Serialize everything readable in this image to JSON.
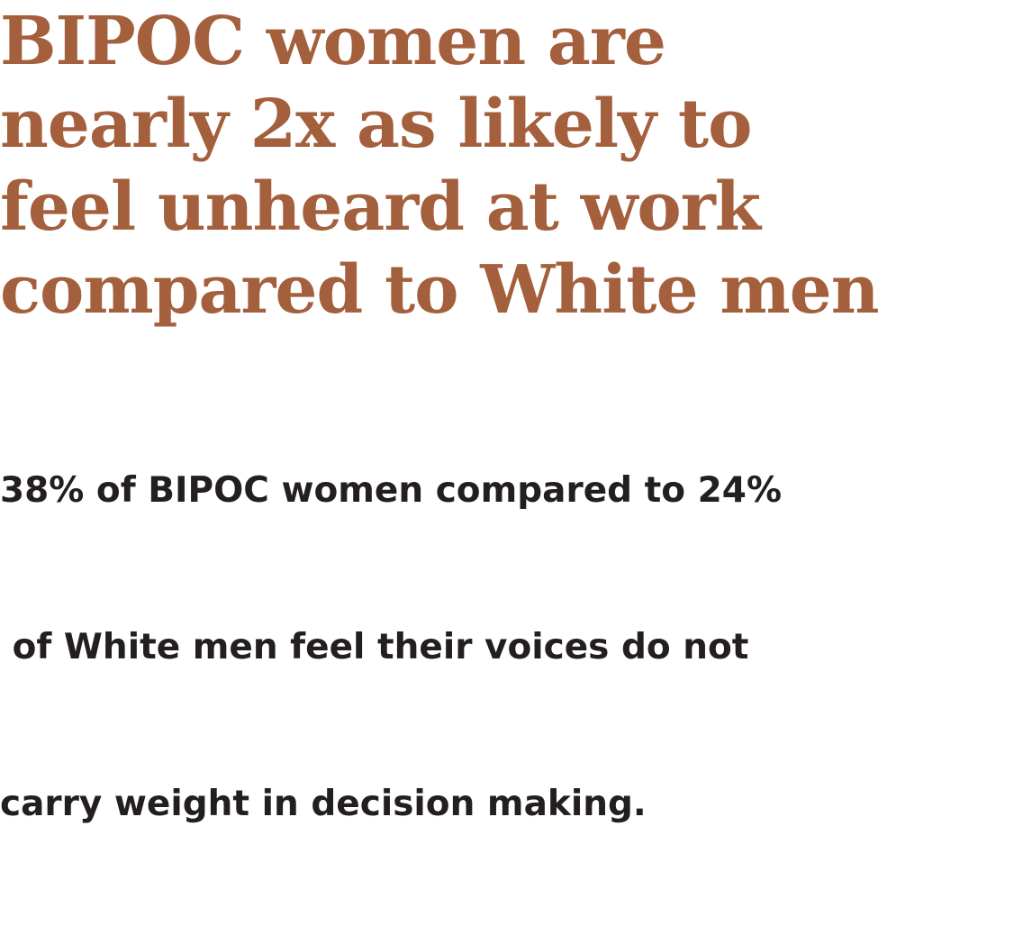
{
  "colors": {
    "headline": "#a45f3c",
    "body": "#231f20",
    "background": "#ffffff"
  },
  "headline": {
    "lines": [
      "BIPOC women are",
      "nearly 2x as likely to",
      "feel unheard at work",
      "compared to White men"
    ]
  },
  "body": {
    "lines": [
      "38% of BIPOC women compared to 24%",
      " of White men feel their voices do not",
      "carry weight in decision making."
    ]
  }
}
